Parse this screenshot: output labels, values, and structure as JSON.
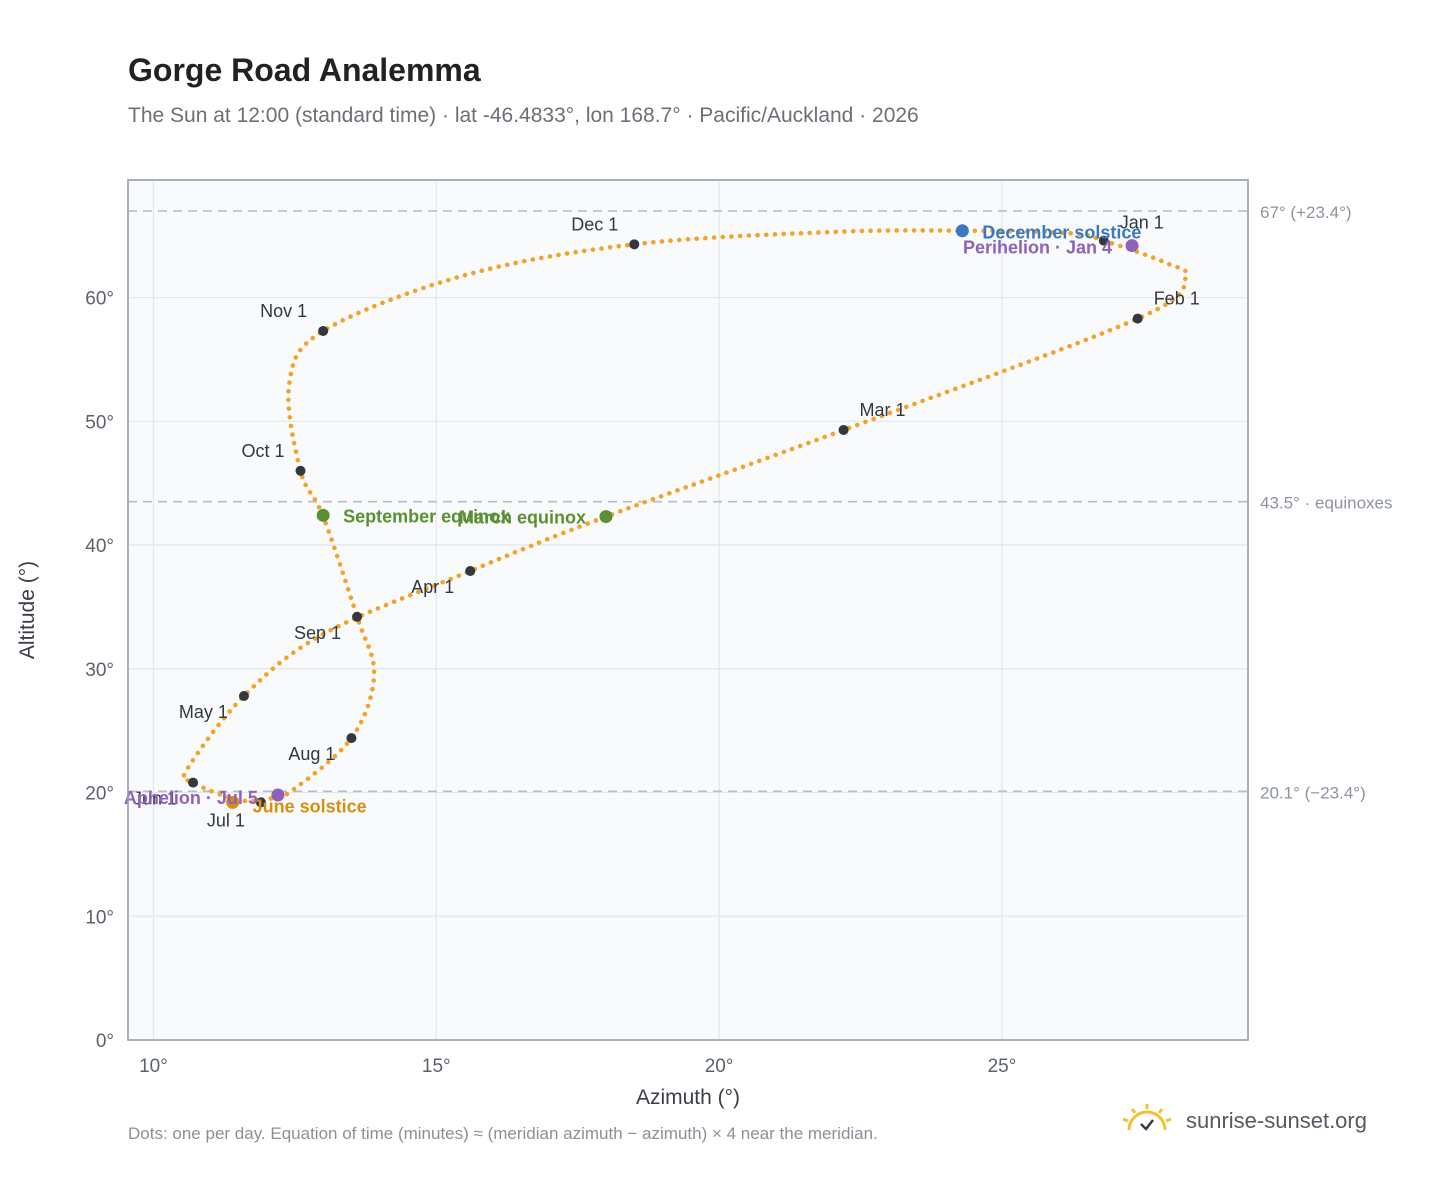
{
  "header": {
    "title": "Gorge Road Analemma",
    "subtitle": "The Sun at 12:00 (standard time) · lat -46.4833°, lon 168.7° · Pacific/Auckland · 2026"
  },
  "footer": {
    "note": "Dots: one per day. Equation of time (minutes) ≈ (meridian azimuth − azimuth) × 4 near the meridian.",
    "brand": "sunrise-sunset.org"
  },
  "colors": {
    "curve": "#f2a42a",
    "month_marker": "#333840",
    "solstice_dec": "#3a78bf",
    "solstice_jun": "#d4900f",
    "equinox": "#5a8f32",
    "apsis": "#8e62b6",
    "plot_bg": "#f8fafc",
    "grid": "#e2e7ee",
    "ref_line": "#b5bfca"
  },
  "chart_data": {
    "type": "scatter",
    "title": "Gorge Road Analemma",
    "xlabel": "Azimuth (°)",
    "ylabel": "Altitude (°)",
    "xlim": [
      9.55,
      29.35
    ],
    "ylim": [
      0,
      69.5
    ],
    "x_ticks": [
      10,
      15,
      20,
      25
    ],
    "x_tick_labels": [
      "10°",
      "15°",
      "20°",
      "25°"
    ],
    "y_ticks": [
      0,
      10,
      20,
      30,
      40,
      50,
      60
    ],
    "y_tick_labels": [
      "0°",
      "10°",
      "20°",
      "30°",
      "40°",
      "50°",
      "60°"
    ],
    "grid": true,
    "reference_lines": [
      {
        "y": 67,
        "label": "67° (+23.4°)"
      },
      {
        "y": 43.5,
        "label": "43.5° · equinoxes"
      },
      {
        "y": 20.1,
        "label": "20.1° (−23.4°)"
      }
    ],
    "series": [
      {
        "points": [
          {
            "x": 26.8,
            "y": 64.6
          },
          {
            "x": 27.9,
            "y": 62.8
          },
          {
            "x": 28.25,
            "y": 61.6
          },
          {
            "x": 27.4,
            "y": 58.3
          },
          {
            "x": 22.2,
            "y": 49.3
          },
          {
            "x": 18.0,
            "y": 42.3
          },
          {
            "x": 15.6,
            "y": 37.9
          },
          {
            "x": 13.0,
            "y": 32.8
          },
          {
            "x": 11.6,
            "y": 27.8
          },
          {
            "x": 10.6,
            "y": 21.9
          },
          {
            "x": 10.7,
            "y": 20.8
          },
          {
            "x": 11.5,
            "y": 19.4
          },
          {
            "x": 12.0,
            "y": 19.5
          },
          {
            "x": 12.4,
            "y": 20.0
          },
          {
            "x": 13.5,
            "y": 24.4
          },
          {
            "x": 13.9,
            "y": 29.5
          },
          {
            "x": 13.6,
            "y": 34.2
          },
          {
            "x": 13.0,
            "y": 42.3
          },
          {
            "x": 12.6,
            "y": 46.0
          },
          {
            "x": 12.4,
            "y": 53.0
          },
          {
            "x": 13.0,
            "y": 57.3
          },
          {
            "x": 15.5,
            "y": 61.8
          },
          {
            "x": 18.5,
            "y": 64.3
          },
          {
            "x": 22.0,
            "y": 65.3
          },
          {
            "x": 24.3,
            "y": 65.4
          },
          {
            "x": 26.2,
            "y": 65.2
          },
          {
            "x": 26.8,
            "y": 64.6
          }
        ]
      }
    ],
    "month_markers": [
      {
        "label": "Jan 1",
        "x": 26.8,
        "y": 64.6,
        "anchor": "left",
        "dx": 16,
        "dy": -12
      },
      {
        "label": "Feb 1",
        "x": 27.4,
        "y": 58.3,
        "anchor": "left",
        "dx": 16,
        "dy": -14
      },
      {
        "label": "Mar 1",
        "x": 22.2,
        "y": 49.3,
        "anchor": "left",
        "dx": 16,
        "dy": -14
      },
      {
        "label": "Apr 1",
        "x": 15.6,
        "y": 37.9,
        "anchor": "right",
        "dx": -16,
        "dy": 22
      },
      {
        "label": "May 1",
        "x": 11.6,
        "y": 27.8,
        "anchor": "right",
        "dx": -16,
        "dy": 22
      },
      {
        "label": "Jun 1",
        "x": 10.7,
        "y": 20.8,
        "anchor": "right",
        "dx": -16,
        "dy": 22
      },
      {
        "label": "Jul 1",
        "x": 11.9,
        "y": 19.2,
        "anchor": "right",
        "dx": -16,
        "dy": 24
      },
      {
        "label": "Aug 1",
        "x": 13.5,
        "y": 24.4,
        "anchor": "right",
        "dx": -16,
        "dy": 22
      },
      {
        "label": "Sep 1",
        "x": 13.6,
        "y": 34.2,
        "anchor": "right",
        "dx": -16,
        "dy": 22
      },
      {
        "label": "Oct 1",
        "x": 12.6,
        "y": 46.0,
        "anchor": "right",
        "dx": -16,
        "dy": -14
      },
      {
        "label": "Nov 1",
        "x": 13.0,
        "y": 57.3,
        "anchor": "right",
        "dx": -16,
        "dy": -14
      },
      {
        "label": "Dec 1",
        "x": 18.5,
        "y": 64.3,
        "anchor": "right",
        "dx": -16,
        "dy": -14
      }
    ],
    "events": [
      {
        "label": "December solstice",
        "x": 24.3,
        "y": 65.4,
        "color_key": "solstice_dec",
        "anchor": "left",
        "dx": 20,
        "dy": 8
      },
      {
        "label": "Perihelion · Jan 4",
        "x": 27.3,
        "y": 64.2,
        "color_key": "apsis",
        "anchor": "right",
        "dx": -20,
        "dy": 8
      },
      {
        "label": "March equinox",
        "x": 18.0,
        "y": 42.3,
        "color_key": "equinox",
        "anchor": "right",
        "dx": -20,
        "dy": 7
      },
      {
        "label": "September equinox",
        "x": 13.0,
        "y": 42.4,
        "color_key": "equinox",
        "anchor": "left",
        "dx": 20,
        "dy": 7
      },
      {
        "label": "June solstice",
        "x": 11.4,
        "y": 19.2,
        "color_key": "solstice_jun",
        "anchor": "left",
        "dx": 20,
        "dy": 10
      },
      {
        "label": "Aphelion · Jul 5",
        "x": 12.2,
        "y": 19.8,
        "color_key": "apsis",
        "anchor": "right",
        "dx": -20,
        "dy": 9
      }
    ]
  }
}
